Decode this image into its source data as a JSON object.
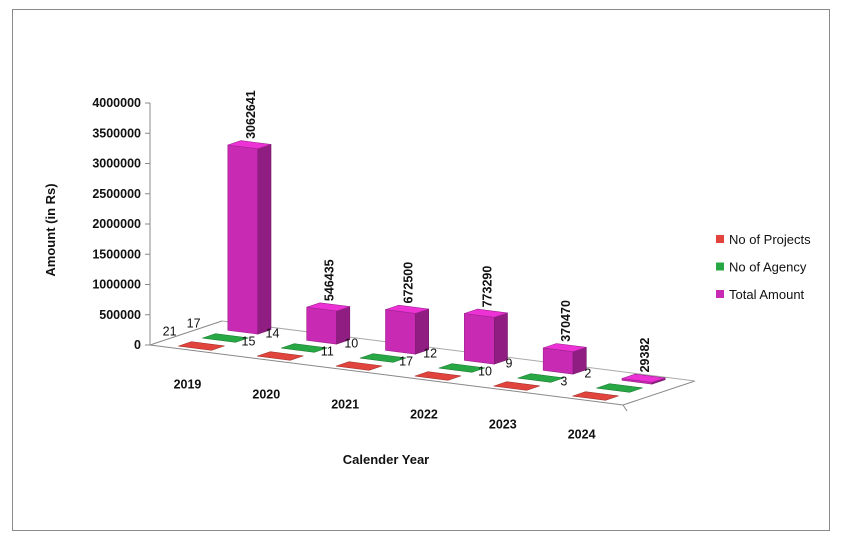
{
  "chart_data": {
    "type": "bar",
    "title": "",
    "xlabel": "Calender Year",
    "ylabel": "Amount (in Rs)",
    "ylim": [
      0,
      4000000
    ],
    "yticks": [
      "0",
      "500000",
      "1000000",
      "1500000",
      "2000000",
      "2500000",
      "3000000",
      "3500000",
      "4000000"
    ],
    "categories": [
      "2019",
      "2020",
      "2021",
      "2022",
      "2023",
      "2024"
    ],
    "series": [
      {
        "name": "No of Projects",
        "values": [
          21,
          15,
          11,
          17,
          10,
          3
        ],
        "color": "#e0443c"
      },
      {
        "name": "No of Agency",
        "values": [
          17,
          14,
          10,
          12,
          9,
          2
        ],
        "color": "#27a844"
      },
      {
        "name": "Total Amount",
        "values": [
          3062641,
          546435,
          672500,
          773290,
          370470,
          29382
        ],
        "color": "#c82ab4"
      }
    ],
    "legend_position": "right",
    "style": "3d-column"
  }
}
